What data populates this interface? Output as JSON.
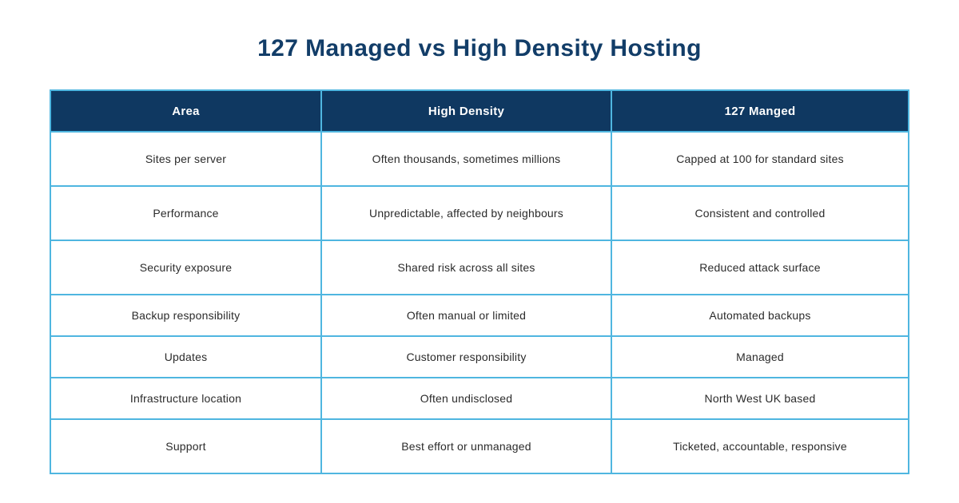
{
  "page": {
    "title": "127 Managed vs High Density Hosting"
  },
  "colors": {
    "title_navy": "#123d68",
    "header_background": "#0f3861",
    "header_text": "#ffffff",
    "border_blue": "#4fb6e0",
    "cell_text": "#2b2b2b",
    "page_background": "#ffffff"
  },
  "chart_data": {
    "type": "table",
    "title": "127 Managed vs High Density Hosting",
    "columns": [
      "Area",
      "High Density",
      "127 Manged"
    ],
    "rows": [
      [
        "Sites per server",
        "Often thousands, sometimes millions",
        "Capped at 100 for standard sites"
      ],
      [
        "Performance",
        "Unpredictable, affected by neighbours",
        "Consistent and controlled"
      ],
      [
        "Security exposure",
        "Shared risk across all sites",
        "Reduced attack surface"
      ],
      [
        "Backup responsibility",
        "Often manual or limited",
        "Automated backups"
      ],
      [
        "Updates",
        "Customer responsibility",
        "Managed"
      ],
      [
        "Infrastructure location",
        "Often undisclosed",
        "North West UK based"
      ],
      [
        "Support",
        "Best effort or unmanaged",
        "Ticketed, accountable, responsive"
      ]
    ]
  }
}
